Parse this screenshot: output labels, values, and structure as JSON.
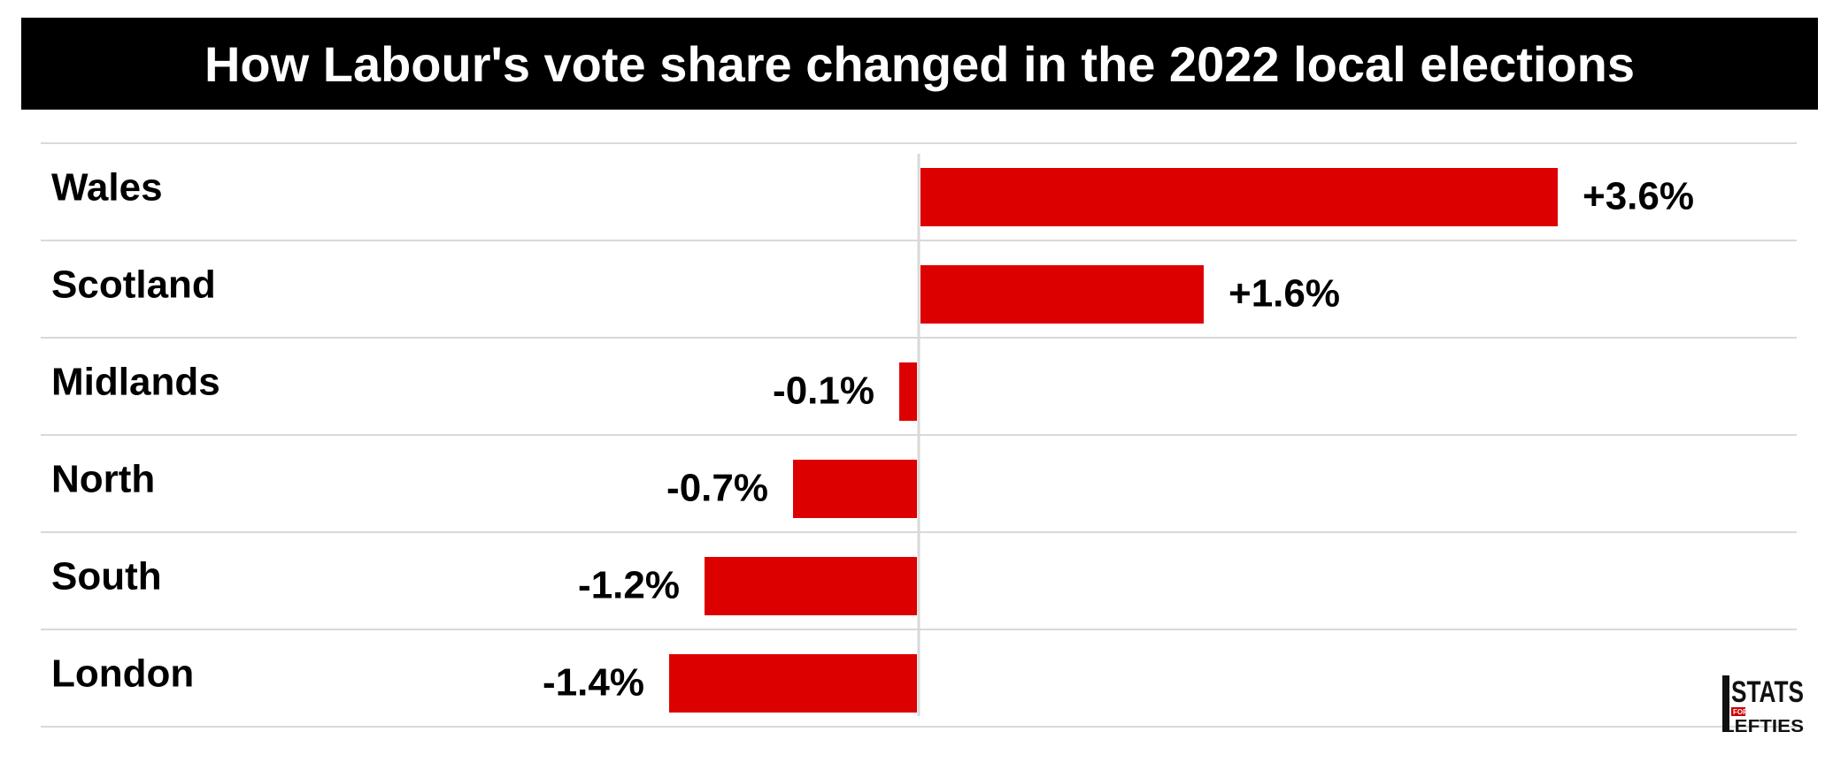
{
  "title": "How Labour's vote share changed in the 2022 local elections",
  "colors": {
    "bar": "#dd0000",
    "title_bg": "#000000",
    "title_fg": "#ffffff",
    "gridline": "#d9d9d9",
    "axis": "#d9d9d9"
  },
  "logo": {
    "text_top": "STATS",
    "text_small": "FOR",
    "text_bottom": "LEFTIES",
    "icon": "stats-for-lefties-logo"
  },
  "chart_data": {
    "type": "bar",
    "orientation": "horizontal",
    "title": "How Labour's vote share changed in the 2022 local elections",
    "categories": [
      "Wales",
      "Scotland",
      "Midlands",
      "North",
      "South",
      "London"
    ],
    "values": [
      3.6,
      1.6,
      -0.1,
      -0.7,
      -1.2,
      -1.4
    ],
    "data_labels": [
      "+3.6%",
      "+1.6%",
      "-0.1%",
      "-0.7%",
      "-1.2%",
      "-1.4%"
    ],
    "xlabel": "",
    "ylabel": "",
    "grid": true,
    "legend": "none"
  }
}
